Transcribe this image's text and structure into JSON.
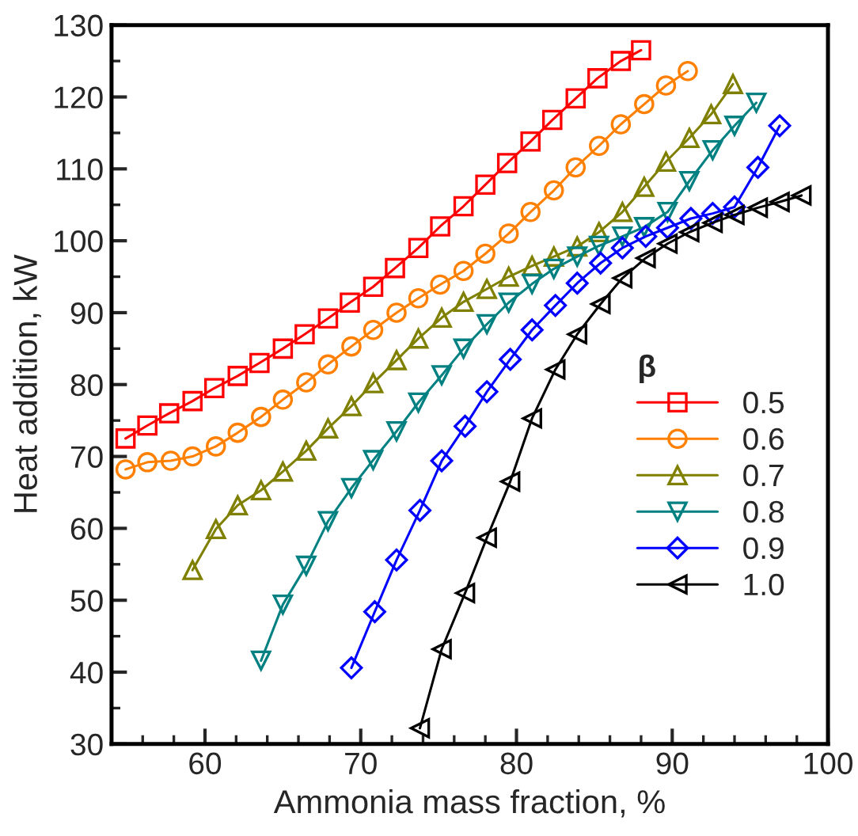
{
  "chart_data": {
    "type": "line",
    "xlabel": "Ammonia mass fraction, %",
    "ylabel": "Heat addition, kW",
    "legend_title": "β",
    "legend": "right",
    "grid": false,
    "line_style": "solid",
    "xlim": [
      54,
      100
    ],
    "xticks": [
      60,
      70,
      80,
      90,
      100
    ],
    "ylim": [
      30,
      130
    ],
    "yticks": [
      30,
      40,
      50,
      60,
      70,
      80,
      90,
      100,
      110,
      120,
      130
    ],
    "series": [
      {
        "name": "0.5",
        "color": "#ff0000",
        "marker": "square",
        "x": [
          54.9,
          56.3,
          57.7,
          59.2,
          60.6,
          62.1,
          63.5,
          65,
          66.4,
          67.9,
          69.3,
          70.8,
          72.2,
          73.7,
          75.1,
          76.6,
          78,
          79.4,
          80.9,
          82.3,
          83.8,
          85.2,
          86.7,
          88
        ],
        "values": [
          72.5,
          74.3,
          76,
          77.7,
          79.5,
          81.2,
          83,
          85,
          87,
          89.2,
          91.4,
          93.6,
          96.2,
          99,
          102,
          104.8,
          107.8,
          110.8,
          113.8,
          116.8,
          119.8,
          122.6,
          125,
          126.5
        ]
      },
      {
        "name": "0.6",
        "color": "#ff8000",
        "marker": "circle",
        "x": [
          54.9,
          56.3,
          57.8,
          59.2,
          60.7,
          62.1,
          63.6,
          65,
          66.5,
          67.9,
          69.4,
          70.8,
          72.3,
          73.7,
          75.1,
          76.6,
          78,
          79.5,
          80.9,
          82.4,
          83.8,
          85.3,
          86.7,
          88.2,
          89.6,
          91
        ],
        "values": [
          68.2,
          69.2,
          69.4,
          70,
          71.4,
          73.3,
          75.5,
          77.9,
          80.3,
          82.8,
          85.3,
          87.6,
          90,
          92,
          93.9,
          95.8,
          98.2,
          101,
          104,
          107,
          110.2,
          113.2,
          116.2,
          119,
          121.6,
          123.6
        ]
      },
      {
        "name": "0.7",
        "color": "#808000",
        "marker": "triangle",
        "x": [
          59.2,
          60.7,
          62.1,
          63.6,
          65,
          66.5,
          67.9,
          69.4,
          70.8,
          72.3,
          73.7,
          75.2,
          76.6,
          78.1,
          79.5,
          81,
          82.4,
          83.9,
          85.3,
          86.8,
          88.2,
          89.6,
          91.1,
          92.5,
          93.9
        ],
        "values": [
          54.2,
          59.9,
          63.2,
          65.3,
          67.9,
          70.8,
          73.9,
          77,
          80.2,
          83.4,
          86.4,
          89.3,
          91.5,
          93.3,
          95,
          96.5,
          97.8,
          99.2,
          101.2,
          104,
          107.5,
          111,
          114.3,
          117.6,
          121.8
        ]
      },
      {
        "name": "0.8",
        "color": "#008080",
        "marker": "triangle_down",
        "x": [
          63.6,
          65,
          66.5,
          67.9,
          69.4,
          70.8,
          72.3,
          73.7,
          75.2,
          76.6,
          78.1,
          79.5,
          81,
          82.4,
          83.9,
          85.3,
          86.8,
          88.2,
          89.7,
          91.1,
          92.6,
          94,
          95.4
        ],
        "values": [
          41.6,
          49.4,
          54.8,
          61,
          65.6,
          69.5,
          73.5,
          77.5,
          81.3,
          85,
          88.4,
          91.4,
          94,
          96.1,
          97.8,
          99.3,
          100.6,
          101.9,
          104,
          108.3,
          112.6,
          116,
          119.2
        ]
      },
      {
        "name": "0.9",
        "color": "#0000ff",
        "marker": "diamond",
        "x": [
          69.4,
          70.9,
          72.3,
          73.8,
          75.2,
          76.7,
          78.1,
          79.6,
          81,
          82.5,
          83.9,
          85.4,
          86.8,
          88.3,
          89.7,
          91.2,
          92.6,
          94,
          95.5,
          96.9
        ],
        "values": [
          40.6,
          48.4,
          55.6,
          62.5,
          69.4,
          74.2,
          79,
          83.5,
          87.6,
          91,
          94.1,
          96.9,
          99,
          100.6,
          101.8,
          103.1,
          103.8,
          104.7,
          110.2,
          116
        ]
      },
      {
        "name": "1.0",
        "color": "#000000",
        "marker": "triangle_left",
        "x": [
          73.8,
          75.2,
          76.7,
          78.1,
          79.6,
          81,
          82.5,
          83.9,
          85.4,
          86.8,
          88.3,
          89.7,
          91.1,
          92.6,
          94,
          95.5,
          96.9,
          98.3
        ],
        "values": [
          32.2,
          43.2,
          51,
          58.7,
          66.5,
          75.3,
          82.1,
          87,
          91.2,
          94.8,
          97.6,
          99.6,
          101.2,
          102.5,
          103.6,
          104.6,
          105.4,
          106.3
        ]
      }
    ]
  }
}
